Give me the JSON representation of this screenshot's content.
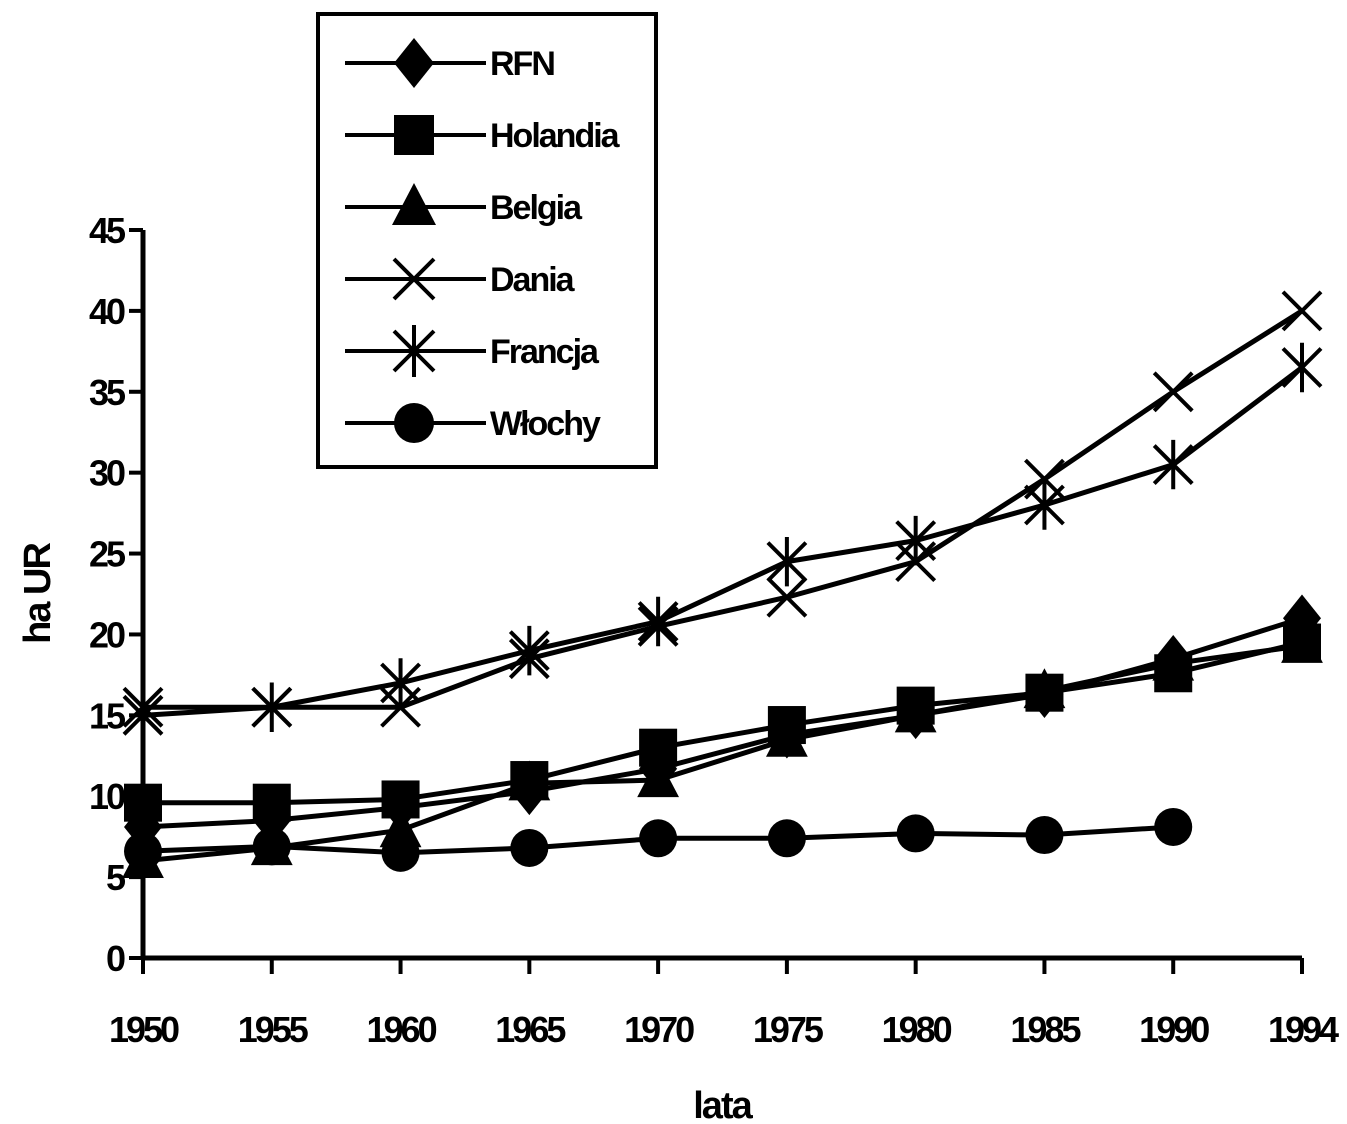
{
  "chart_data": {
    "type": "line",
    "title": "",
    "xlabel": "lata",
    "ylabel": "ha UR",
    "x": [
      "1950",
      "1955",
      "1960",
      "1965",
      "1970",
      "1975",
      "1980",
      "1985",
      "1990",
      "1994"
    ],
    "ylim": [
      0,
      45
    ],
    "yticks": [
      "0",
      "5",
      "10",
      "15",
      "20",
      "25",
      "30",
      "35",
      "40",
      "45"
    ],
    "grid": false,
    "legend_position": "top-left",
    "series": [
      {
        "name": "RFN",
        "marker": "diamond",
        "values": [
          8.1,
          8.5,
          9.3,
          10.3,
          11.7,
          13.8,
          15.0,
          16.3,
          18.5,
          21.0
        ]
      },
      {
        "name": "Holandia",
        "marker": "square",
        "values": [
          9.6,
          9.6,
          9.8,
          11.0,
          13.0,
          14.4,
          15.6,
          16.4,
          17.6,
          19.5
        ]
      },
      {
        "name": "Belgia",
        "marker": "triangle",
        "values": [
          6.0,
          6.8,
          7.9,
          10.8,
          11.0,
          13.5,
          15.0,
          16.5,
          18.2,
          19.3
        ]
      },
      {
        "name": "Dania",
        "marker": "x",
        "values": [
          15.5,
          15.5,
          15.5,
          18.5,
          20.5,
          22.3,
          24.5,
          29.6,
          35.0,
          40.0
        ]
      },
      {
        "name": "Francja",
        "marker": "star",
        "values": [
          15.0,
          15.5,
          17.0,
          19.0,
          20.8,
          24.5,
          25.8,
          28.0,
          30.5,
          36.5
        ]
      },
      {
        "name": "Włochy",
        "marker": "circle",
        "values": [
          6.6,
          6.9,
          6.5,
          6.8,
          7.4,
          7.4,
          7.7,
          7.6,
          8.1,
          null
        ]
      }
    ]
  }
}
